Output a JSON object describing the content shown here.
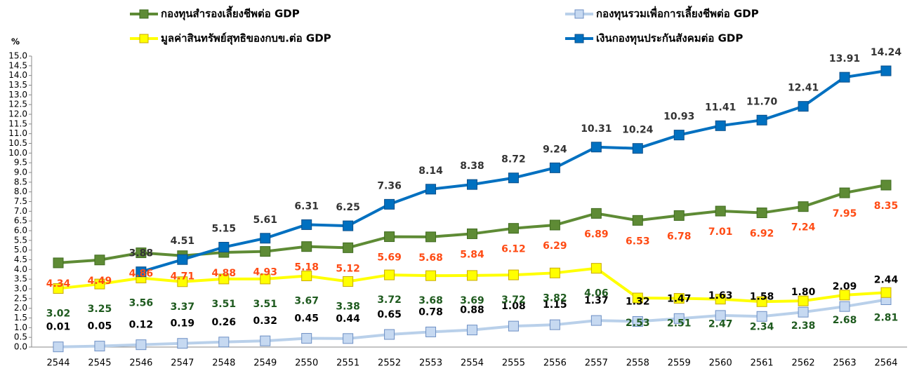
{
  "chart_data": {
    "type": "line",
    "y_label": "%",
    "categories": [
      "2544",
      "2545",
      "2546",
      "2547",
      "2548",
      "2549",
      "2550",
      "2551",
      "2552",
      "2553",
      "2554",
      "2555",
      "2556",
      "2557",
      "2558",
      "2559",
      "2560",
      "2561",
      "2562",
      "2563",
      "2564"
    ],
    "ylim": [
      0,
      15
    ],
    "yticks": [
      {
        "value": 0,
        "label": "0.0"
      },
      0.5,
      {
        "value": 1,
        "label": "1.0"
      },
      1.5,
      {
        "value": 2,
        "label": "2.0"
      },
      2.5,
      {
        "value": 3,
        "label": "3.0"
      },
      3.5,
      {
        "value": 4,
        "label": "4.0"
      },
      4.5,
      {
        "value": 5,
        "label": "5.0"
      },
      5.5,
      {
        "value": 6,
        "label": "6.0"
      },
      6.5,
      {
        "value": 7,
        "label": "7.0"
      },
      7.5,
      {
        "value": 8,
        "label": "8.0"
      },
      8.5,
      {
        "value": 9,
        "label": "9.0"
      },
      9.5,
      {
        "value": 10,
        "label": "10.0"
      },
      10.5,
      {
        "value": 11,
        "label": "11.0"
      },
      11.5,
      {
        "value": 12,
        "label": "12.0"
      },
      12.5,
      {
        "value": 13,
        "label": "13.0"
      },
      13.5,
      {
        "value": 14,
        "label": "14.0"
      },
      14.5,
      {
        "value": 15,
        "label": "15.0"
      }
    ],
    "grid": false,
    "series": [
      {
        "name": "กองทุนสำรองเลี้ยงชีพต่อ GDP",
        "color": "#5e8b35",
        "marker_color": "#5e8b35",
        "label_color": "#ff4b14",
        "values": [
          4.34,
          4.49,
          4.86,
          4.71,
          4.88,
          4.93,
          5.18,
          5.12,
          5.69,
          5.68,
          5.84,
          6.12,
          6.29,
          6.89,
          6.53,
          6.78,
          7.01,
          6.92,
          7.24,
          7.95,
          8.35
        ],
        "value_labels": [
          "4.34",
          "4.49",
          "4.86",
          "4.71",
          "4.88",
          "4.93",
          "5.18",
          "5.12",
          "5.69",
          "5.68",
          "5.84",
          "6.12",
          "6.29",
          "6.89",
          "6.53",
          "6.78",
          "7.01",
          "6.92",
          "7.24",
          "7.95",
          "8.35"
        ]
      },
      {
        "name": "กองทุนรวมเพื่อการเลี้ยงชีพต่อ GDP",
        "color": "#b9d0ea",
        "marker_color": "#c6d9f1",
        "label_color": "#000000",
        "values": [
          0.01,
          0.05,
          0.12,
          0.19,
          0.26,
          0.32,
          0.45,
          0.44,
          0.65,
          0.78,
          0.88,
          1.08,
          1.15,
          1.37,
          1.32,
          1.47,
          1.63,
          1.58,
          1.8,
          2.09,
          2.44
        ],
        "value_labels": [
          "0.01",
          "0.05",
          "0.12",
          "0.19",
          "0.26",
          "0.32",
          "0.45",
          "0.44",
          "0.65",
          "0.78",
          "0.88",
          "1.08",
          "1.15",
          "1.37",
          "1.32",
          "1.47",
          "1.63",
          "1.58",
          "1.80",
          "2.09",
          "2.44"
        ]
      },
      {
        "name": "มูลค่าสินทรัพย์สุทธิของกบข.ต่อ GDP",
        "color": "#ffff00",
        "marker_color": "#ffff00",
        "label_color": "#1e5a1e",
        "values": [
          3.02,
          3.25,
          3.56,
          3.37,
          3.51,
          3.51,
          3.67,
          3.38,
          3.72,
          3.68,
          3.69,
          3.72,
          3.82,
          4.06,
          2.53,
          2.51,
          2.47,
          2.34,
          2.38,
          2.68,
          2.81
        ],
        "value_labels": [
          "3.02",
          "3.25",
          "3.56",
          "3.37",
          "3.51",
          "3.51",
          "3.67",
          "3.38",
          "3.72",
          "3.68",
          "3.69",
          "3.72",
          "3.82",
          "4.06",
          "2.53",
          "2.51",
          "2.47",
          "2.34",
          "2.38",
          "2.68",
          "2.81"
        ]
      },
      {
        "name": "เงินกองทุนประกันสังคมต่อ GDP",
        "color": "#0070c0",
        "marker_color": "#0070c0",
        "label_color": "#333333",
        "values": [
          null,
          null,
          3.88,
          4.51,
          5.15,
          5.61,
          6.31,
          6.25,
          7.36,
          8.14,
          8.38,
          8.72,
          9.24,
          10.31,
          10.24,
          10.93,
          11.41,
          11.7,
          12.41,
          13.91,
          14.24
        ],
        "value_labels": [
          null,
          null,
          "3.88",
          "4.51",
          "5.15",
          "5.61",
          "6.31",
          "6.25",
          "7.36",
          "8.14",
          "8.38",
          "8.72",
          "9.24",
          "10.31",
          "10.24",
          "10.93",
          "11.41",
          "11.70",
          "12.41",
          "13.91",
          "14.24"
        ]
      }
    ]
  }
}
